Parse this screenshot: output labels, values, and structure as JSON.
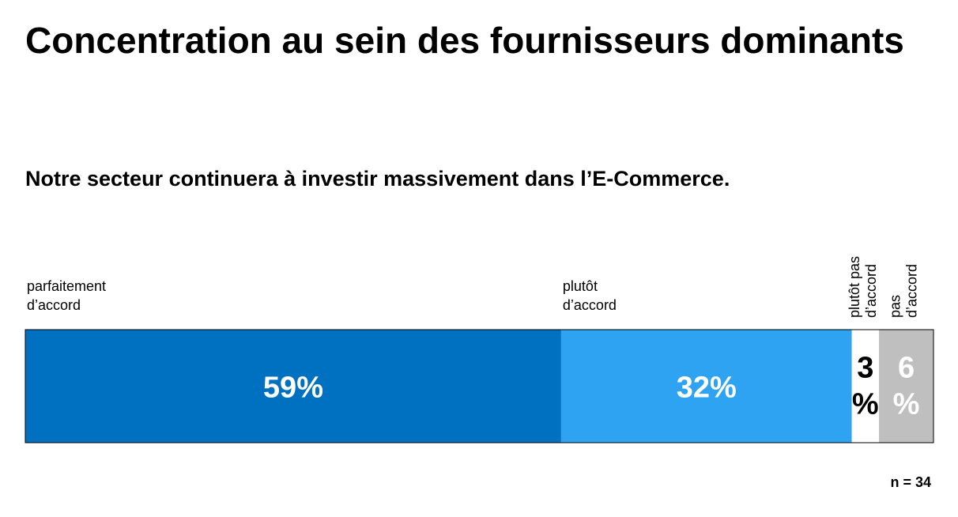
{
  "title": "Concentration au sein des fournisseurs dominants",
  "subtitle": "Notre secteur continuera à investir massivement dans l’E-Commerce.",
  "sample_size": "n = 34",
  "chart_data": {
    "type": "bar",
    "stacked": true,
    "orientation": "horizontal",
    "unit": "%",
    "segments": [
      {
        "name": "parfaitement d’accord",
        "label_lines": [
          "parfaitement",
          "d’accord"
        ],
        "value": 59,
        "value_label": "59%",
        "color": "#0070C0",
        "text_color": "#ffffff"
      },
      {
        "name": "plutôt d’accord",
        "label_lines": [
          "plutôt",
          "d’accord"
        ],
        "value": 32,
        "value_label": "32%",
        "color": "#2EA3F2",
        "text_color": "#ffffff"
      },
      {
        "name": "plutôt pas d’accord",
        "label_lines": [
          "plutôt pas",
          "d’accord"
        ],
        "value": 3,
        "value_label_lines": [
          "3",
          "%"
        ],
        "color": "#ffffff",
        "text_color": "#000000"
      },
      {
        "name": "pas d’accord",
        "label_lines": [
          "pas",
          "d’accord"
        ],
        "value": 6,
        "value_label_lines": [
          "6",
          "%"
        ],
        "color": "#BFBFBF",
        "text_color": "#ffffff"
      }
    ]
  }
}
